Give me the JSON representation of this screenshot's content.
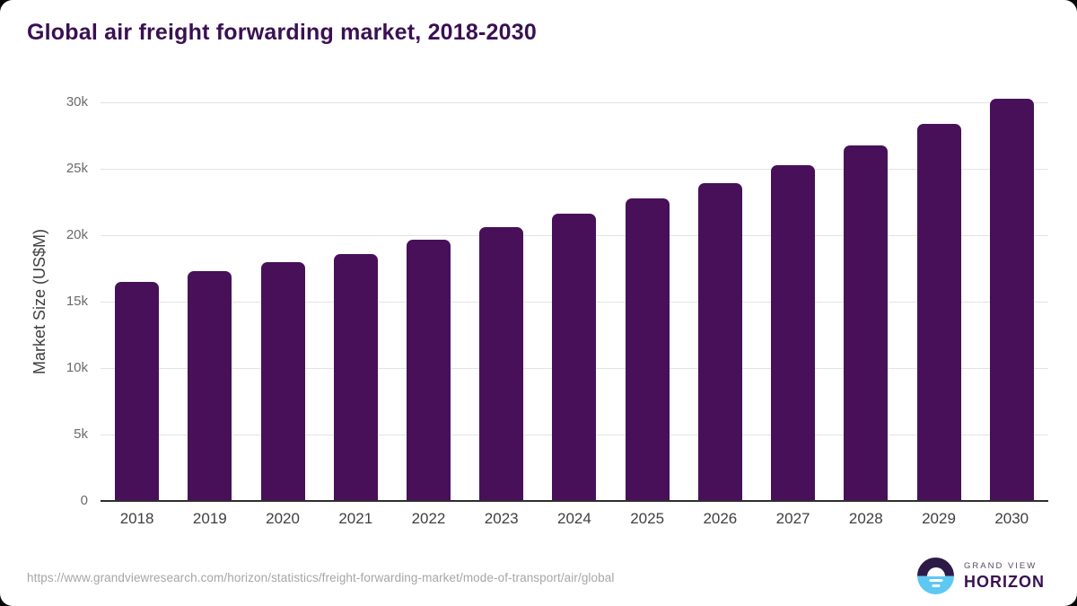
{
  "page": {
    "title": "Global air freight forwarding market, 2018-2030",
    "source_url": "https://www.grandviewresearch.com/horizon/statistics/freight-forwarding-market/mode-of-transport/air/global"
  },
  "chart_data": {
    "type": "bar",
    "title": "Global air freight forwarding market, 2018-2030",
    "categories": [
      "2018",
      "2019",
      "2020",
      "2021",
      "2022",
      "2023",
      "2024",
      "2025",
      "2026",
      "2027",
      "2028",
      "2029",
      "2030"
    ],
    "values": [
      16500,
      17300,
      18000,
      18600,
      19650,
      20600,
      21600,
      22750,
      23950,
      25300,
      26750,
      28400,
      30250
    ],
    "xlabel": "",
    "ylabel": "Market Size (US$M)",
    "ylim": [
      0,
      30000
    ],
    "yticks": [
      0,
      5000,
      10000,
      15000,
      20000,
      25000,
      30000
    ],
    "ytick_labels": [
      "0",
      "5k",
      "10k",
      "15k",
      "20k",
      "25k",
      "30k"
    ],
    "grid": "horizontal-only",
    "legend": "none",
    "bar_color": "#471059"
  },
  "colors": {
    "bar": "#471059",
    "title_text": "#3a1052",
    "axis_text": "#3f3f3f",
    "tick_text": "#6b6b6b",
    "gridline": "#e3e3e3",
    "axis_line": "#2e2e2e",
    "url_text": "#a6a6a6",
    "logo_dark_half": "#2e1a47",
    "logo_blue_half": "#5ec8f2"
  },
  "logo": {
    "line1": "GRAND VIEW",
    "line2": "HORIZON"
  }
}
